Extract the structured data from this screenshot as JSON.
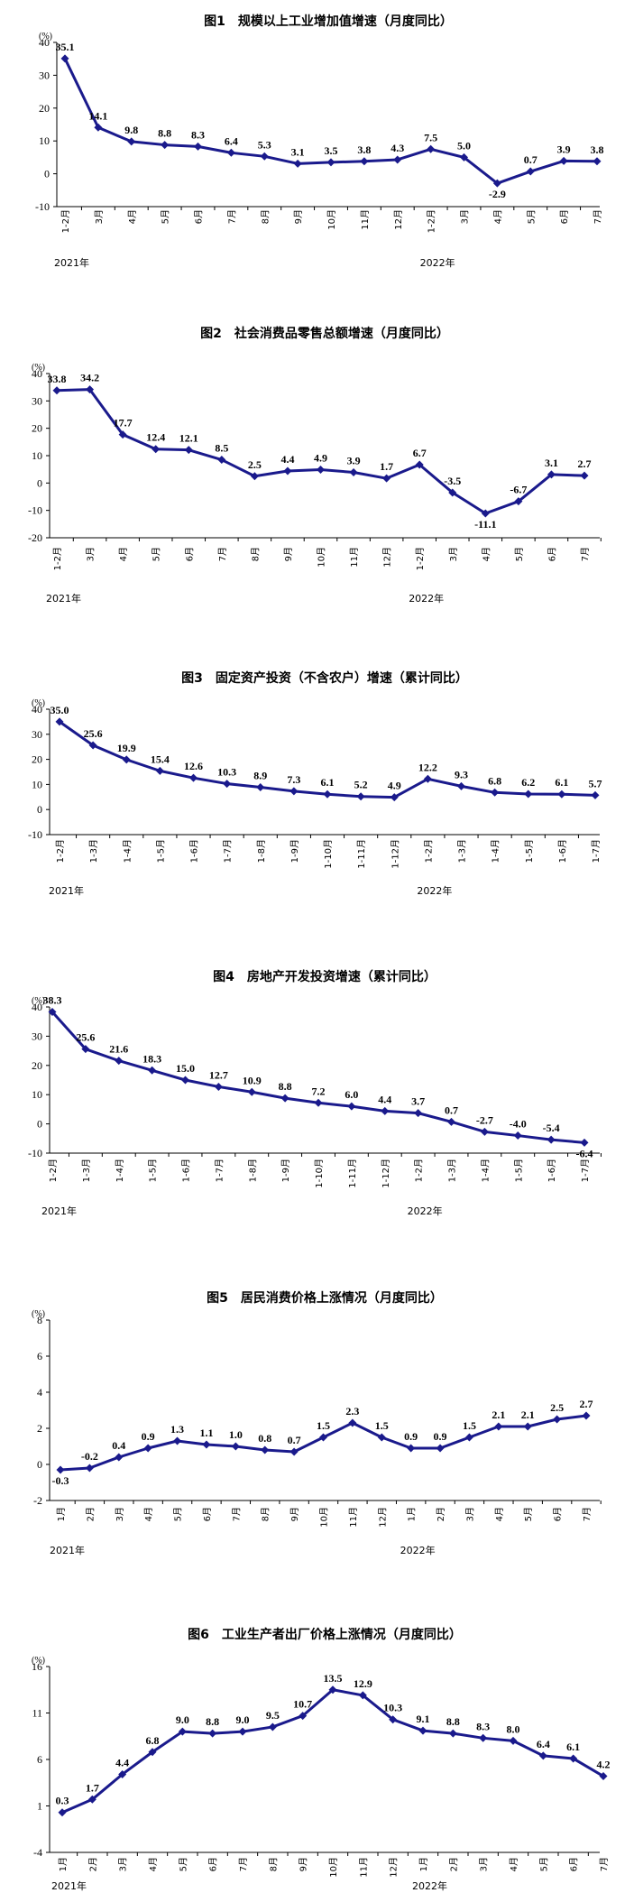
{
  "line_color": "#1a1a8c",
  "chart_data": [
    {
      "type": "line",
      "title": "图1　规模以上工业增加值增速（月度同比）",
      "unit": "(%)",
      "ylim": [
        -10,
        40
      ],
      "yticks": [
        -10,
        0,
        10,
        20,
        30,
        40
      ],
      "categories": [
        "1-2月",
        "3月",
        "4月",
        "5月",
        "6月",
        "7月",
        "8月",
        "9月",
        "10月",
        "11月",
        "12月",
        "1-2月",
        "3月",
        "4月",
        "5月",
        "6月",
        "7月"
      ],
      "values": [
        35.1,
        14.1,
        9.8,
        8.8,
        8.3,
        6.4,
        5.3,
        3.1,
        3.5,
        3.8,
        4.3,
        7.5,
        5.0,
        -2.9,
        0.7,
        3.9,
        3.8
      ],
      "labels": [
        "35.1",
        "14.1",
        "9.8",
        "8.8",
        "8.3",
        "6.4",
        "5.3",
        "3.1",
        "3.5",
        "3.8",
        "4.3",
        "7.5",
        "5.0",
        "-2.9",
        "0.7",
        "3.9",
        "3.8"
      ],
      "year_labels": [
        {
          "text": "2021年",
          "index": 0
        },
        {
          "text": "2022年",
          "index": 11
        }
      ],
      "grid": false
    },
    {
      "type": "line",
      "title": "图2　社会消费品零售总额增速（月度同比）",
      "unit": "(%)",
      "ylim": [
        -20,
        40
      ],
      "yticks": [
        -20,
        -10,
        0,
        10,
        20,
        30,
        40
      ],
      "categories": [
        "1-2月",
        "3月",
        "4月",
        "5月",
        "6月",
        "7月",
        "8月",
        "9月",
        "10月",
        "11月",
        "12月",
        "1-2月",
        "3月",
        "4月",
        "5月",
        "6月",
        "7月"
      ],
      "values": [
        33.8,
        34.2,
        17.7,
        12.4,
        12.1,
        8.5,
        2.5,
        4.4,
        4.9,
        3.9,
        1.7,
        6.7,
        -3.5,
        -11.1,
        -6.7,
        3.1,
        2.7
      ],
      "labels": [
        "33.8",
        "34.2",
        "17.7",
        "12.4",
        "12.1",
        "8.5",
        "2.5",
        "4.4",
        "4.9",
        "3.9",
        "1.7",
        "6.7",
        "-3.5",
        "-11.1",
        "-6.7",
        "3.1",
        "2.7"
      ],
      "year_labels": [
        {
          "text": "2021年",
          "index": 0
        },
        {
          "text": "2022年",
          "index": 11
        }
      ],
      "grid": false
    },
    {
      "type": "line",
      "title": "图3　固定资产投资（不含农户）增速（累计同比）",
      "unit": "(%)",
      "ylim": [
        -10,
        40
      ],
      "yticks": [
        -10,
        0,
        10,
        20,
        30,
        40
      ],
      "categories": [
        "1-2月",
        "1-3月",
        "1-4月",
        "1-5月",
        "1-6月",
        "1-7月",
        "1-8月",
        "1-9月",
        "1-10月",
        "1-11月",
        "1-12月",
        "1-2月",
        "1-3月",
        "1-4月",
        "1-5月",
        "1-6月",
        "1-7月"
      ],
      "values": [
        35.0,
        25.6,
        19.9,
        15.4,
        12.6,
        10.3,
        8.9,
        7.3,
        6.1,
        5.2,
        4.9,
        12.2,
        9.3,
        6.8,
        6.2,
        6.1,
        5.7
      ],
      "labels": [
        "35.0",
        "25.6",
        "19.9",
        "15.4",
        "12.6",
        "10.3",
        "8.9",
        "7.3",
        "6.1",
        "5.2",
        "4.9",
        "12.2",
        "9.3",
        "6.8",
        "6.2",
        "6.1",
        "5.7"
      ],
      "year_labels": [
        {
          "text": "2021年",
          "index": 0
        },
        {
          "text": "2022年",
          "index": 11
        }
      ],
      "grid": false
    },
    {
      "type": "line",
      "title": "图4　房地产开发投资增速（累计同比）",
      "unit": "(%)",
      "ylim": [
        -10,
        40
      ],
      "yticks": [
        -10,
        0,
        10,
        20,
        30,
        40
      ],
      "categories": [
        "1-2月",
        "1-3月",
        "1-4月",
        "1-5月",
        "1-6月",
        "1-7月",
        "1-8月",
        "1-9月",
        "1-10月",
        "1-11月",
        "1-12月",
        "1-2月",
        "1-3月",
        "1-4月",
        "1-5月",
        "1-6月",
        "1-7月"
      ],
      "values": [
        38.3,
        25.6,
        21.6,
        18.3,
        15.0,
        12.7,
        10.9,
        8.8,
        7.2,
        6.0,
        4.4,
        3.7,
        0.7,
        -2.7,
        -4.0,
        -5.4,
        -6.4
      ],
      "labels": [
        "38.3",
        "25.6",
        "21.6",
        "18.3",
        "15.0",
        "12.7",
        "10.9",
        "8.8",
        "7.2",
        "6.0",
        "4.4",
        "3.7",
        "0.7",
        "-2.7",
        "-4.0",
        "-5.4",
        "-6.4"
      ],
      "year_labels": [
        {
          "text": "2021年",
          "index": 0
        },
        {
          "text": "2022年",
          "index": 11
        }
      ],
      "grid": false
    },
    {
      "type": "line",
      "title": "图5　居民消费价格上涨情况（月度同比）",
      "unit": "(%)",
      "ylim": [
        -2,
        8
      ],
      "yticks": [
        -2,
        0,
        2,
        4,
        6,
        8
      ],
      "categories": [
        "1月",
        "2月",
        "3月",
        "4月",
        "5月",
        "6月",
        "7月",
        "8月",
        "9月",
        "10月",
        "11月",
        "12月",
        "1月",
        "2月",
        "3月",
        "4月",
        "5月",
        "6月",
        "7月"
      ],
      "values": [
        -0.3,
        -0.2,
        0.4,
        0.9,
        1.3,
        1.1,
        1.0,
        0.8,
        0.7,
        1.5,
        2.3,
        1.5,
        0.9,
        0.9,
        1.5,
        2.1,
        2.1,
        2.5,
        2.7
      ],
      "labels": [
        "-0.3",
        "-0.2",
        "0.4",
        "0.9",
        "1.3",
        "1.1",
        "1.0",
        "0.8",
        "0.7",
        "1.5",
        "2.3",
        "1.5",
        "0.9",
        "0.9",
        "1.5",
        "2.1",
        "2.1",
        "2.5",
        "2.7"
      ],
      "year_labels": [
        {
          "text": "2021年",
          "index": 0
        },
        {
          "text": "2022年",
          "index": 12
        }
      ],
      "grid": false
    },
    {
      "type": "line",
      "title": "图6　工业生产者出厂价格上涨情况（月度同比）",
      "unit": "(%)",
      "ylim": [
        -4,
        16
      ],
      "yticks": [
        -4,
        1,
        6,
        11,
        16
      ],
      "categories": [
        "1月",
        "2月",
        "3月",
        "4月",
        "5月",
        "6月",
        "7月",
        "8月",
        "9月",
        "10月",
        "11月",
        "12月",
        "1月",
        "2月",
        "3月",
        "4月",
        "5月",
        "6月",
        "7月"
      ],
      "values": [
        0.3,
        1.7,
        4.4,
        6.8,
        9.0,
        8.8,
        9.0,
        9.5,
        10.7,
        13.5,
        12.9,
        10.3,
        9.1,
        8.8,
        8.3,
        8.0,
        6.4,
        6.1,
        4.2
      ],
      "labels": [
        "0.3",
        "1.7",
        "4.4",
        "6.8",
        "9.0",
        "8.8",
        "9.0",
        "9.5",
        "10.7",
        "13.5",
        "12.9",
        "10.3",
        "9.1",
        "8.8",
        "8.3",
        "8.0",
        "6.4",
        "6.1",
        "4.2"
      ],
      "year_labels": [
        {
          "text": "2021年",
          "index": 0
        },
        {
          "text": "2022年",
          "index": 12
        }
      ],
      "grid": false
    }
  ]
}
